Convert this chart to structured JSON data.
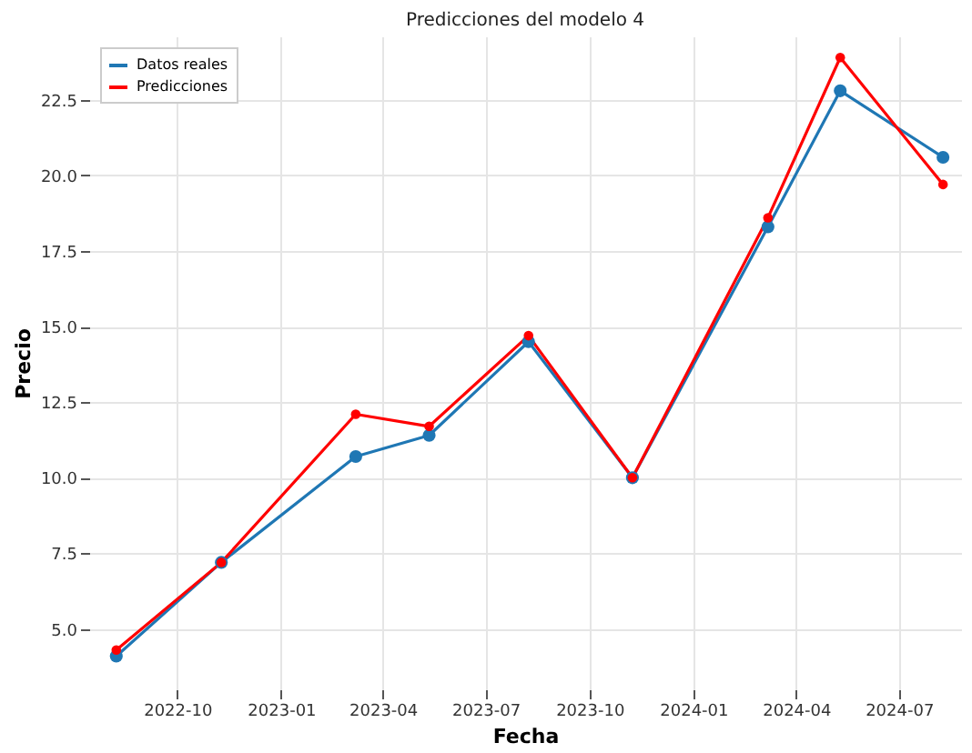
{
  "chart_data": {
    "type": "line",
    "title": "Predicciones del modelo 4",
    "xlabel": "Fecha",
    "ylabel": "Precio",
    "x": [
      "2022-08-08",
      "2022-11-09",
      "2023-03-08",
      "2023-05-12",
      "2023-08-08",
      "2023-11-08",
      "2024-03-07",
      "2024-05-10",
      "2024-08-09"
    ],
    "series": [
      {
        "name": "Datos reales",
        "color": "#1f77b4",
        "values": [
          4.1,
          7.2,
          10.7,
          11.4,
          14.5,
          10.0,
          18.3,
          22.8,
          20.6
        ]
      },
      {
        "name": "Predicciones",
        "color": "#ff0000",
        "values": [
          4.3,
          7.2,
          12.1,
          11.7,
          14.7,
          10.0,
          18.6,
          23.9,
          19.7
        ]
      }
    ],
    "xlim": [
      "2022-07-15",
      "2024-08-25"
    ],
    "xticks": [
      {
        "value": "2022-10-01",
        "label": "2022-10"
      },
      {
        "value": "2023-01-01",
        "label": "2023-01"
      },
      {
        "value": "2023-04-01",
        "label": "2023-04"
      },
      {
        "value": "2023-07-01",
        "label": "2023-07"
      },
      {
        "value": "2023-10-01",
        "label": "2023-10"
      },
      {
        "value": "2024-01-01",
        "label": "2024-01"
      },
      {
        "value": "2024-04-01",
        "label": "2024-04"
      },
      {
        "value": "2024-07-01",
        "label": "2024-07"
      }
    ],
    "ylim": [
      3,
      24.6
    ],
    "yticks": [
      {
        "value": 5,
        "label": "5.0"
      },
      {
        "value": 7.5,
        "label": "7.5"
      },
      {
        "value": 10,
        "label": "10.0"
      },
      {
        "value": 12.5,
        "label": "12.5"
      },
      {
        "value": 15,
        "label": "15.0"
      },
      {
        "value": 17.5,
        "label": "17.5"
      },
      {
        "value": 20,
        "label": "20.0"
      },
      {
        "value": 22.5,
        "label": "22.5"
      }
    ],
    "grid": true,
    "legend": "top left",
    "marker": "circle",
    "line_style": "solid"
  }
}
